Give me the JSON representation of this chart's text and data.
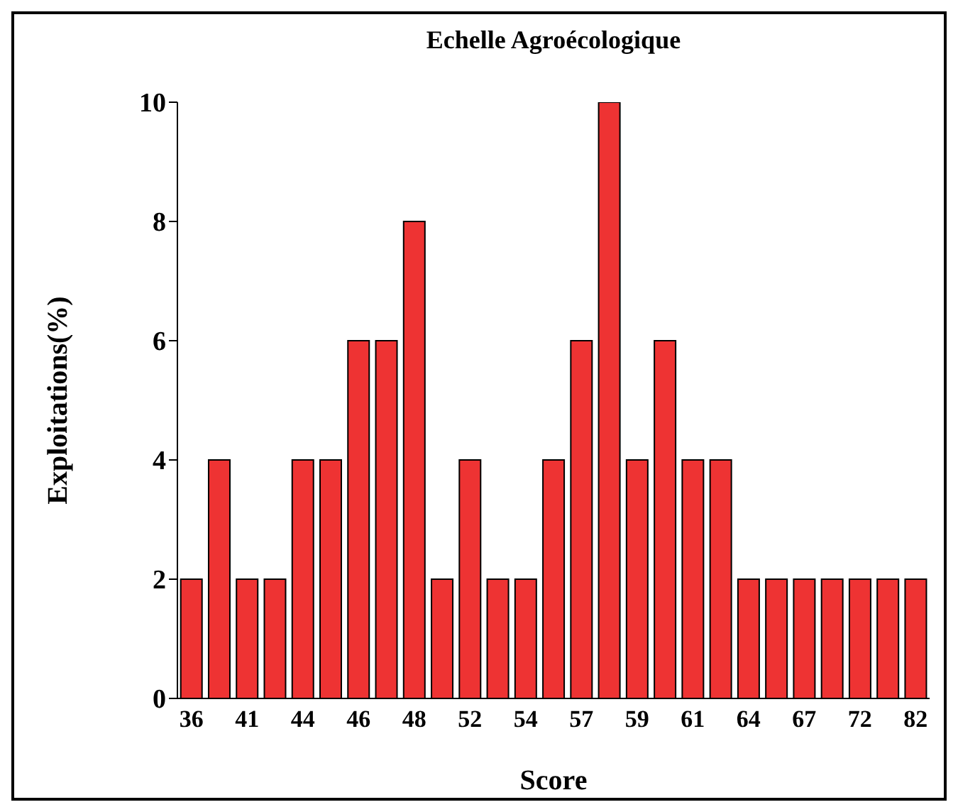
{
  "chart_data": {
    "type": "bar",
    "title": "Echelle Agroécologique",
    "xlabel": "Score",
    "ylabel": "Exploitations(%)",
    "categories": [
      "36",
      null,
      "41",
      null,
      "44",
      null,
      "46",
      null,
      "48",
      null,
      "52",
      null,
      "54",
      null,
      "57",
      null,
      "59",
      null,
      "61",
      null,
      "64",
      null,
      "67",
      null,
      "72",
      null,
      "82"
    ],
    "values": [
      2,
      4,
      2,
      2,
      4,
      4,
      6,
      6,
      8,
      2,
      4,
      2,
      2,
      4,
      6,
      10,
      4,
      6,
      4,
      4,
      2,
      2,
      2,
      2,
      2,
      2,
      2
    ],
    "color": "#ee3333",
    "ylim": [
      0,
      10
    ],
    "yticks": [
      0,
      2,
      4,
      6,
      8,
      10
    ]
  }
}
